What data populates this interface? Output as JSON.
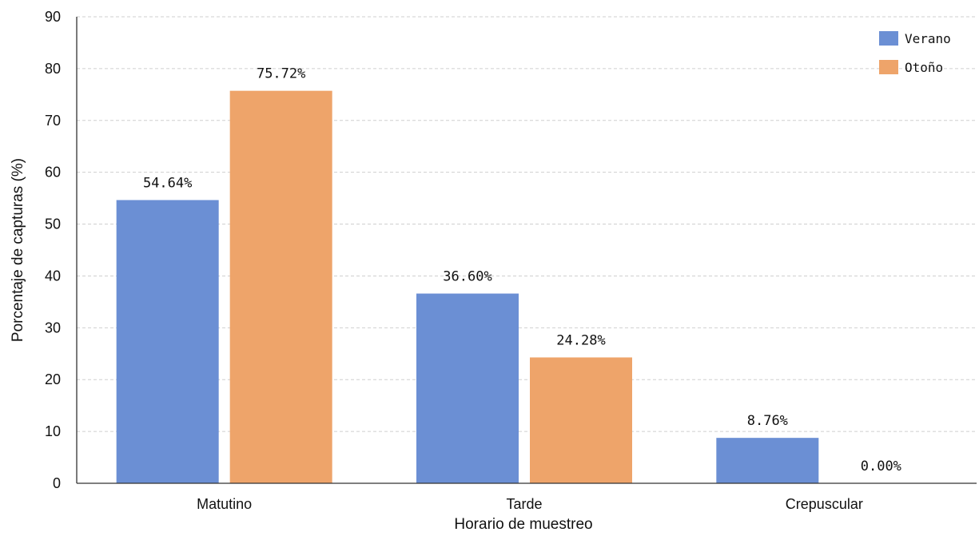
{
  "chart_data": {
    "type": "bar",
    "title": "",
    "xlabel": "Horario de muestreo",
    "ylabel": "Porcentaje de capturas (%)",
    "ylim": [
      0,
      90
    ],
    "yticks": [
      0,
      10,
      20,
      30,
      40,
      50,
      60,
      70,
      80,
      90
    ],
    "grid": true,
    "legend_position": "top-right",
    "categories": [
      "Matutino",
      "Tarde",
      "Crepuscular"
    ],
    "series": [
      {
        "name": "Verano",
        "color": "#6b8fd4",
        "values": [
          54.64,
          36.6,
          8.76
        ],
        "labels": [
          "54.64%",
          "36.60%",
          "8.76%"
        ]
      },
      {
        "name": "Otoño",
        "color": "#eea46a",
        "values": [
          75.72,
          24.28,
          0.0
        ],
        "labels": [
          "75.72%",
          "24.28%",
          "0.00%"
        ]
      }
    ]
  }
}
